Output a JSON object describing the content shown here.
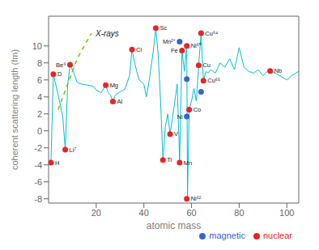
{
  "chart_data": {
    "type": "scatter",
    "xlabel": "atomic mass",
    "ylabel": "coherent scattering length (fm)",
    "annotations": [
      "X-rays"
    ],
    "xlim": [
      0,
      105
    ],
    "ylim": [
      -8.5,
      13.5
    ],
    "xticks": [
      20,
      40,
      60,
      80,
      100
    ],
    "yticks": [
      -8,
      -6,
      -4,
      -2,
      0,
      2,
      4,
      6,
      8,
      10
    ],
    "legend": "lower right",
    "series": [
      {
        "type": "line",
        "color": "#00c0d0",
        "line_style": "solid",
        "x": [
          1,
          2,
          3,
          4,
          5,
          6,
          7,
          8,
          9,
          10,
          11,
          12,
          14,
          16,
          18,
          19,
          20,
          22,
          24,
          25,
          26,
          27,
          28,
          30,
          32,
          34,
          35,
          36,
          37,
          38,
          40,
          41,
          42,
          44,
          45,
          46,
          47,
          48,
          49,
          50,
          51,
          52,
          53,
          54,
          55,
          56,
          57,
          58,
          58.3,
          59,
          60,
          61,
          62,
          63,
          64,
          65,
          66,
          67,
          68,
          70,
          72,
          74,
          76,
          78,
          80,
          82,
          84,
          86,
          88,
          90,
          92,
          93,
          95,
          97,
          100,
          102,
          105
        ],
        "values": [
          -3.74,
          6.67,
          5.5,
          4.2,
          3.0,
          1.5,
          -2.22,
          5.3,
          7.79,
          7.2,
          6.5,
          5.7,
          5.5,
          5.4,
          5.3,
          5.2,
          4.8,
          4.5,
          5.38,
          4.5,
          4.2,
          3.45,
          4.2,
          4.6,
          4.9,
          6.5,
          9.58,
          8.2,
          7.0,
          6.0,
          5.5,
          4.0,
          5.5,
          9.5,
          12.1,
          9.0,
          3.5,
          -3.44,
          0.5,
          2.0,
          -0.38,
          1.5,
          3.5,
          5.5,
          -3.73,
          9.45,
          7.0,
          10.0,
          -8.0,
          2.49,
          3.5,
          5.0,
          3.5,
          7.718,
          11.5,
          5.9,
          7.0,
          6.8,
          7.2,
          6.8,
          8.0,
          7.5,
          8.5,
          7.2,
          9.8,
          7.5,
          7.0,
          6.8,
          7.2,
          6.5,
          7.054,
          7.054,
          6.8,
          6.5,
          6.0,
          6.5,
          7.0
        ]
      },
      {
        "type": "line",
        "color": "#66cc00",
        "line_style": "dashed",
        "x": [
          4,
          6,
          8,
          10,
          12,
          15,
          18
        ],
        "values": [
          2.5,
          4.0,
          5.5,
          7.0,
          8.5,
          10.0,
          11.5
        ]
      },
      {
        "name": "nuclear",
        "type": "scatter",
        "marker": "circle",
        "color": "#ee2222",
        "x": [
          1,
          2,
          7,
          9,
          24,
          27,
          35,
          45,
          48,
          51,
          55,
          56,
          58,
          59,
          58,
          63,
          64,
          65,
          93
        ],
        "values": [
          -3.74,
          6.67,
          -2.22,
          7.79,
          5.38,
          3.45,
          9.58,
          12.1,
          -3.44,
          -0.38,
          -3.73,
          9.45,
          10.0,
          2.49,
          -8.0,
          7.718,
          11.5,
          5.9,
          7.054
        ],
        "point_labels": [
          "H",
          "D",
          "Li⁷",
          "Be⁹",
          "Mg",
          "Al",
          "Cl",
          "Sc",
          "Ti",
          "V",
          "Mn",
          "Fe",
          "Ni⁶⁰",
          "Co",
          "Ni⁶²",
          "Cu",
          "Cu⁶⁴",
          "Cu⁶⁵",
          "Nb"
        ]
      },
      {
        "name": "magnetic",
        "type": "scatter",
        "marker": "circle",
        "color": "#3366cc",
        "x": [
          55,
          58,
          58,
          64
        ],
        "values": [
          10.5,
          6.1,
          1.7,
          4.6
        ],
        "point_labels": [
          "Mn²⁺",
          null,
          "Ni",
          null
        ]
      }
    ]
  }
}
